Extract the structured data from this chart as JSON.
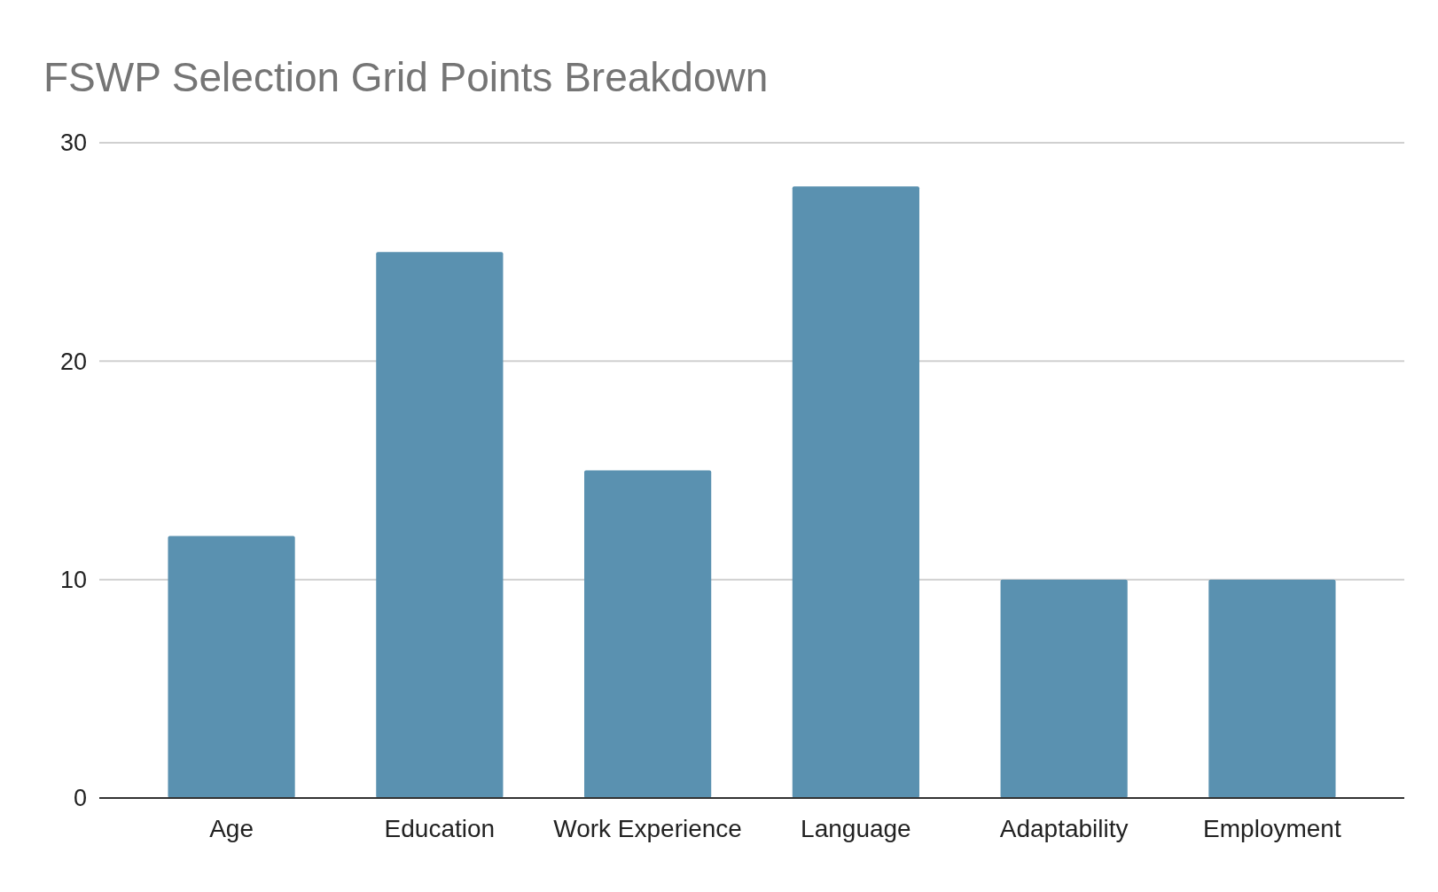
{
  "chart_data": {
    "type": "bar",
    "title": "FSWP Selection Grid Points Breakdown",
    "categories": [
      "Age",
      "Education",
      "Work Experience",
      "Language",
      "Adaptability",
      "Employment"
    ],
    "values": [
      12,
      25,
      15,
      28,
      10,
      10
    ],
    "color": "#5a91b0",
    "ylim": [
      0,
      30
    ],
    "yticks": [
      0,
      10,
      20,
      30
    ],
    "grid": "y"
  }
}
